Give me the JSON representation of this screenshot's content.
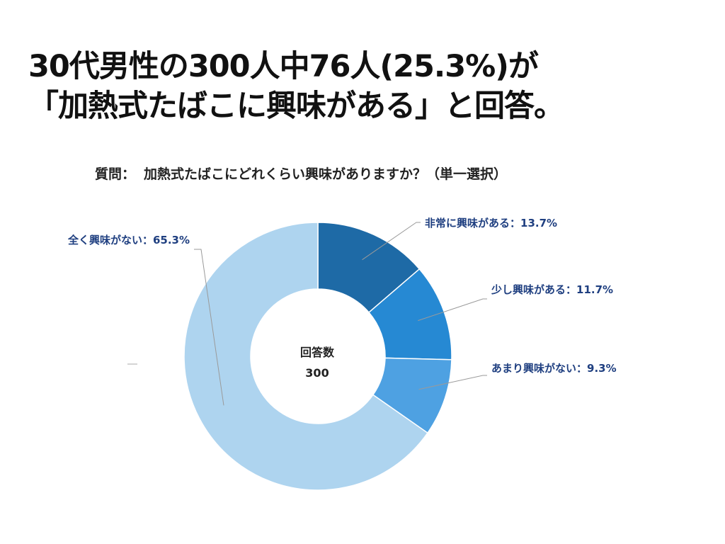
{
  "headline": {
    "line1": "30代男性の300人中76人(25.3%)が",
    "line2": "「加熱式たばこに興味がある」と回答。"
  },
  "question": {
    "prefix": "質問：",
    "text": "加熱式たばこにどれくらい興味がありますか？（単一選択）"
  },
  "chart_data": {
    "type": "pie",
    "donut": true,
    "title": "",
    "center_label": "回答数",
    "center_value": "300",
    "slices": [
      {
        "label": "非常に興味がある",
        "value": 13.7,
        "display": "非常に興味がある：13.7%",
        "color": "#1e6aa6"
      },
      {
        "label": "少し興味がある",
        "value": 11.7,
        "display": "少し興味がある：11.7%",
        "color": "#2689d3"
      },
      {
        "label": "あまり興味がない",
        "value": 9.3,
        "display": "あまり興味がない：9.3%",
        "color": "#4ea1e2"
      },
      {
        "label": "全く興味がない",
        "value": 65.3,
        "display": "全く興味がない：65.3%",
        "color": "#aed4ef"
      }
    ]
  }
}
